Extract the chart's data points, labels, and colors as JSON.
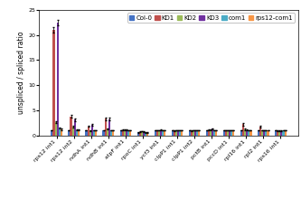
{
  "categories": [
    "rps12 int1",
    "rps12 int2",
    "ndhA int1",
    "ndhB int1",
    "atpF int1",
    "rpoC int1",
    "ycf3 int1",
    "clpP1 int1",
    "clpP1 int2",
    "pctB int1",
    "pccD int1",
    "rpl16 int1",
    "rpl2 int1",
    "rps16 int1"
  ],
  "series_names": [
    "Col-0",
    "KD1",
    "KD2",
    "KD3",
    "com1",
    "rps12-com1"
  ],
  "colors": [
    "#4472c4",
    "#c0504d",
    "#9bbb59",
    "#7030a0",
    "#4bacc6",
    "#f79646"
  ],
  "values": {
    "Col-0": [
      1.0,
      1.0,
      1.0,
      1.0,
      1.0,
      0.6,
      1.0,
      1.0,
      1.0,
      1.0,
      1.0,
      1.0,
      1.0,
      1.0
    ],
    "KD1": [
      21.0,
      3.8,
      1.8,
      3.3,
      1.1,
      0.7,
      1.0,
      0.9,
      0.9,
      1.1,
      1.0,
      2.2,
      1.8,
      0.9
    ],
    "KD2": [
      2.7,
      1.7,
      1.0,
      1.3,
      1.1,
      0.8,
      1.0,
      1.0,
      1.0,
      1.1,
      1.0,
      1.2,
      1.0,
      0.9
    ],
    "KD3": [
      22.5,
      3.1,
      2.1,
      3.2,
      1.1,
      0.7,
      1.1,
      1.0,
      1.0,
      1.3,
      1.0,
      1.1,
      1.0,
      0.9
    ],
    "com1": [
      1.5,
      1.1,
      1.0,
      1.0,
      1.0,
      0.6,
      1.0,
      1.0,
      1.0,
      1.0,
      1.0,
      1.0,
      1.0,
      1.0
    ],
    "rps12-com1": [
      1.2,
      1.1,
      1.0,
      1.0,
      1.0,
      0.6,
      1.0,
      1.0,
      1.0,
      1.0,
      1.0,
      1.0,
      1.0,
      1.0
    ]
  },
  "errors": {
    "Col-0": [
      0.05,
      0.05,
      0.05,
      0.05,
      0.05,
      0.05,
      0.05,
      0.05,
      0.05,
      0.05,
      0.05,
      0.05,
      0.05,
      0.05
    ],
    "KD1": [
      0.5,
      0.25,
      0.15,
      0.3,
      0.08,
      0.05,
      0.05,
      0.05,
      0.05,
      0.1,
      0.05,
      0.2,
      0.2,
      0.05
    ],
    "KD2": [
      0.2,
      0.2,
      0.1,
      0.15,
      0.08,
      0.05,
      0.05,
      0.05,
      0.05,
      0.1,
      0.05,
      0.1,
      0.05,
      0.05
    ],
    "KD3": [
      0.6,
      0.3,
      0.2,
      0.25,
      0.08,
      0.05,
      0.08,
      0.05,
      0.05,
      0.15,
      0.05,
      0.1,
      0.05,
      0.05
    ],
    "com1": [
      0.1,
      0.05,
      0.05,
      0.05,
      0.05,
      0.05,
      0.05,
      0.05,
      0.05,
      0.05,
      0.05,
      0.05,
      0.05,
      0.05
    ],
    "rps12-com1": [
      0.1,
      0.05,
      0.05,
      0.05,
      0.05,
      0.05,
      0.05,
      0.05,
      0.05,
      0.05,
      0.05,
      0.05,
      0.05,
      0.05
    ]
  },
  "ylabel": "unspliced / spliced ratio",
  "ylim": [
    0,
    25
  ],
  "yticks": [
    0,
    5,
    10,
    15,
    20,
    25
  ],
  "background_color": "#ffffff",
  "plot_bg_color": "#ffffff",
  "axis_fontsize": 5.5,
  "tick_fontsize": 4.5,
  "legend_fontsize": 5.0
}
